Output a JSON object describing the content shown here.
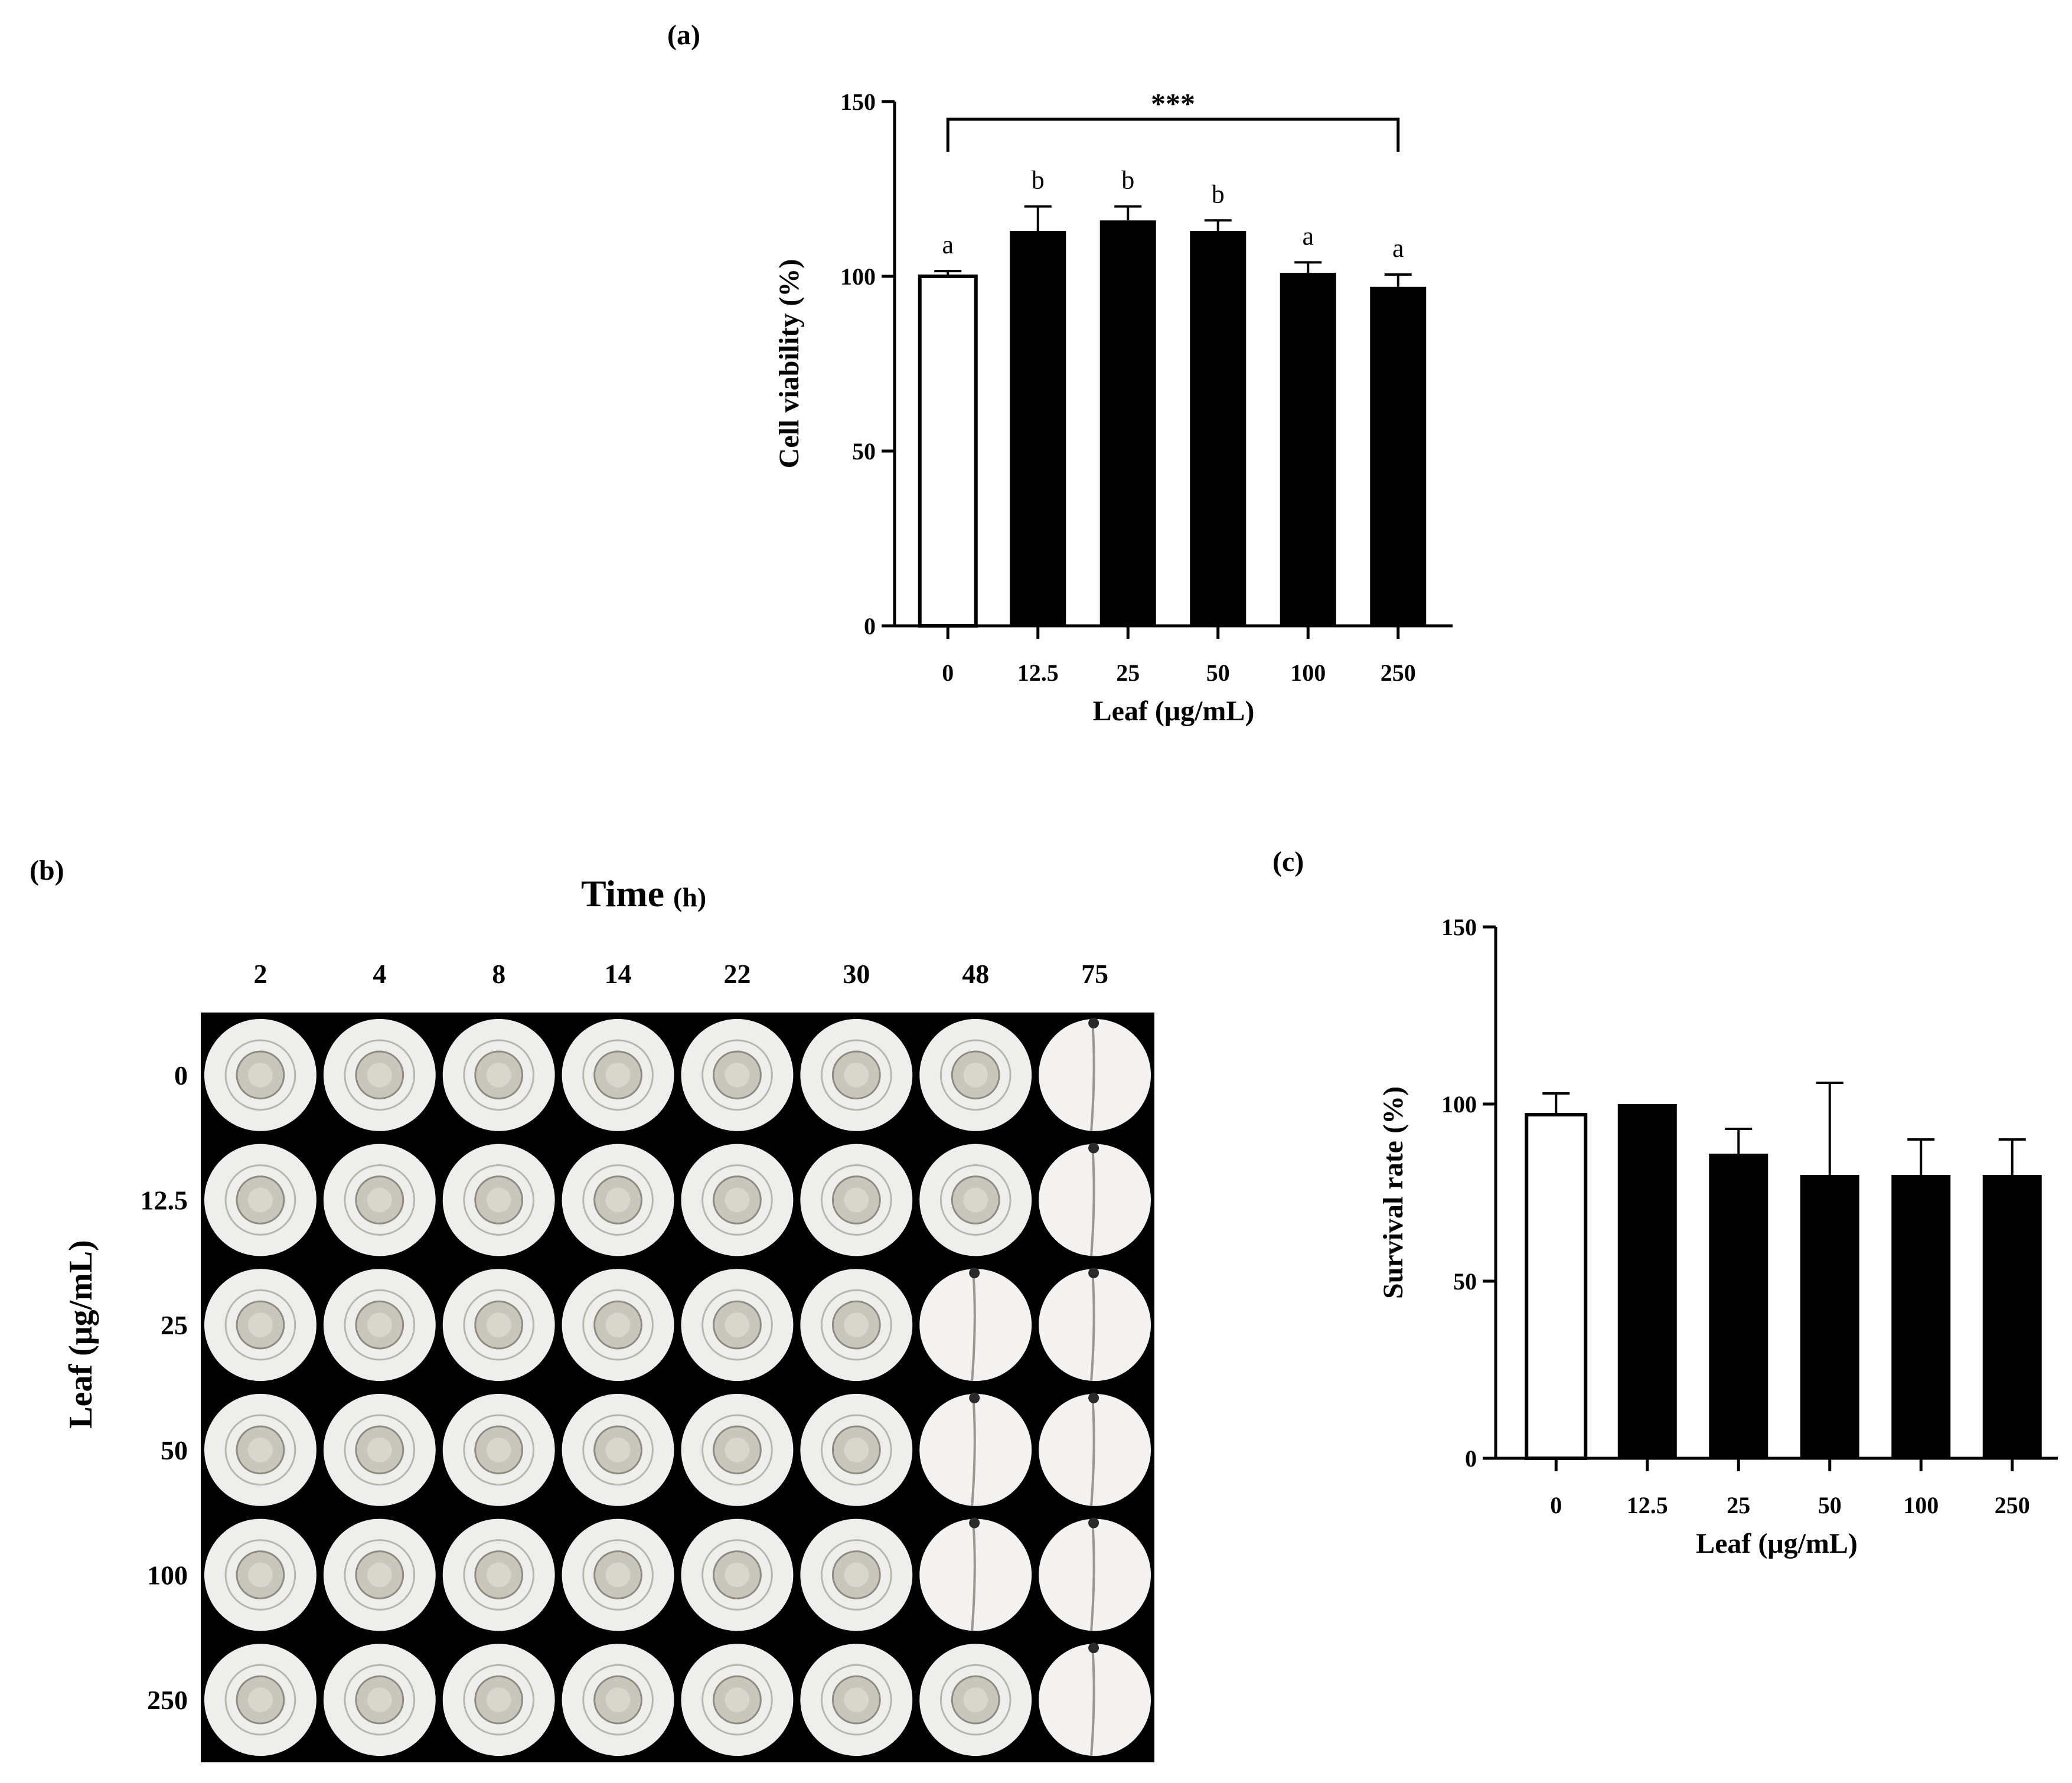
{
  "panels": {
    "a": {
      "label": "(a)"
    },
    "b": {
      "label": "(b)"
    },
    "c": {
      "label": "(c)"
    }
  },
  "chart_data": [
    {
      "id": "a",
      "type": "bar",
      "categories": [
        "0",
        "12.5",
        "25",
        "50",
        "100",
        "250"
      ],
      "values": [
        100,
        113,
        116,
        113,
        101,
        97
      ],
      "errors": [
        1.5,
        7,
        4,
        3,
        3,
        3.5
      ],
      "bar_fill": [
        "open",
        "filled",
        "filled",
        "filled",
        "filled",
        "filled"
      ],
      "letters": [
        "a",
        "b",
        "b",
        "b",
        "a",
        "a"
      ],
      "significance": {
        "from": "0",
        "to": "250",
        "label": "***"
      },
      "xlabel": "Leaf (μg/mL)",
      "ylabel": "Cell viability (%)",
      "ylim": [
        0,
        150
      ],
      "yticks": [
        0,
        50,
        100,
        150
      ]
    },
    {
      "id": "c",
      "type": "bar",
      "categories": [
        "0",
        "12.5",
        "25",
        "50",
        "100",
        "250"
      ],
      "values": [
        97,
        100,
        86,
        80,
        80,
        80
      ],
      "errors": [
        6,
        0,
        7,
        26,
        10,
        10
      ],
      "bar_fill": [
        "open",
        "filled",
        "filled",
        "filled",
        "filled",
        "filled"
      ],
      "xlabel": "Leaf (μg/mL)",
      "ylabel": "Survival rate (%)",
      "ylim": [
        0,
        150
      ],
      "yticks": [
        0,
        50,
        100,
        150
      ]
    }
  ],
  "image_grid": {
    "title": "Time",
    "title_unit": "(h)",
    "columns": [
      "2",
      "4",
      "8",
      "14",
      "22",
      "30",
      "48",
      "75"
    ],
    "rows": [
      "0",
      "12.5",
      "25",
      "50",
      "100",
      "250"
    ],
    "row_label": "Leaf (μg/mL)",
    "hatched": [
      [
        false,
        false,
        false,
        false,
        false,
        false,
        false,
        true
      ],
      [
        false,
        false,
        false,
        false,
        false,
        false,
        false,
        true
      ],
      [
        false,
        false,
        false,
        false,
        false,
        false,
        true,
        true
      ],
      [
        false,
        false,
        false,
        false,
        false,
        false,
        true,
        true
      ],
      [
        false,
        false,
        false,
        false,
        false,
        false,
        true,
        true
      ],
      [
        false,
        false,
        false,
        false,
        false,
        false,
        false,
        true
      ]
    ]
  },
  "colors": {
    "bar": "#000000",
    "well_bg": "#000000",
    "well_plate": "#eeeeec",
    "yolk": "#c9c6bd"
  }
}
